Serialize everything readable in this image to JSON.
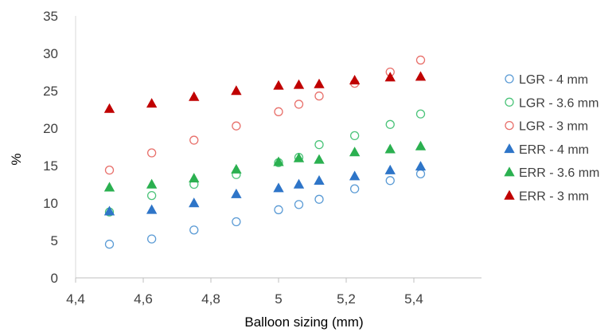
{
  "chart_data": {
    "type": "scatter",
    "xlabel": "Balloon sizing (mm)",
    "ylabel": "%",
    "xlim": [
      4.4,
      5.6
    ],
    "ylim": [
      0,
      35
    ],
    "xticks": [
      4.4,
      4.6,
      4.8,
      5.0,
      5.2,
      5.4
    ],
    "xtick_labels": [
      "4,4",
      "4,6",
      "4,8",
      "5",
      "5,2",
      "5,4"
    ],
    "yticks": [
      0,
      5,
      10,
      15,
      20,
      25,
      30,
      35
    ],
    "ytick_labels": [
      "0",
      "5",
      "10",
      "15",
      "20",
      "25",
      "30",
      "35"
    ],
    "grid": false,
    "legend_position": "right",
    "x": [
      4.5,
      4.625,
      4.75,
      4.875,
      5.0,
      5.06,
      5.12,
      5.225,
      5.33,
      5.42
    ],
    "series": [
      {
        "name": "LGR - 4 mm",
        "marker": "circle-open",
        "color": "#5B9BD5",
        "values": [
          4.5,
          5.2,
          6.4,
          7.5,
          9.1,
          9.8,
          10.5,
          11.9,
          13.0,
          13.9
        ]
      },
      {
        "name": "LGR - 3.6 mm",
        "marker": "circle-open",
        "color": "#4CC47A",
        "values": [
          8.8,
          11.0,
          12.5,
          13.8,
          15.4,
          16.1,
          17.8,
          19.0,
          20.5,
          21.9
        ]
      },
      {
        "name": "LGR - 3 mm",
        "marker": "circle-open",
        "color": "#E8706B",
        "values": [
          14.4,
          16.7,
          18.4,
          20.3,
          22.2,
          23.2,
          24.3,
          26.0,
          27.5,
          29.1
        ]
      },
      {
        "name": "ERR - 4 mm",
        "marker": "triangle",
        "color": "#2E75C8",
        "values": [
          8.9,
          9.1,
          10.0,
          11.2,
          12.0,
          12.5,
          13.0,
          13.6,
          14.4,
          14.9
        ]
      },
      {
        "name": "ERR - 3.6 mm",
        "marker": "triangle",
        "color": "#2BB050",
        "values": [
          12.1,
          12.5,
          13.3,
          14.5,
          15.5,
          16.0,
          15.8,
          16.8,
          17.2,
          17.6
        ]
      },
      {
        "name": "ERR - 3 mm",
        "marker": "triangle",
        "color": "#C00000",
        "values": [
          22.6,
          23.3,
          24.2,
          25.0,
          25.7,
          25.8,
          25.9,
          26.4,
          26.8,
          26.9
        ]
      }
    ]
  }
}
